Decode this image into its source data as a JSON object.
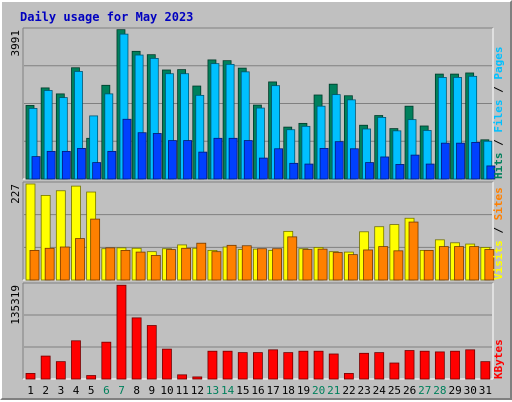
{
  "chart_data": {
    "type": "bar",
    "title": "Daily usage for May 2023",
    "days": [
      "1",
      "2",
      "3",
      "4",
      "5",
      "6",
      "7",
      "8",
      "9",
      "10",
      "11",
      "12",
      "13",
      "14",
      "15",
      "16",
      "17",
      "18",
      "19",
      "20",
      "21",
      "22",
      "23",
      "24",
      "25",
      "26",
      "27",
      "28",
      "29",
      "30",
      "31"
    ],
    "weekend_days": [
      6,
      7,
      13,
      14,
      20,
      21,
      27,
      28
    ],
    "colors": {
      "hits": "#00805c",
      "files": "#00c0ff",
      "pages": "#0040ff",
      "visits": "#ffff00",
      "sites": "#ff8000",
      "kbytes": "#ff0000",
      "weekday_label": "#000000",
      "weekend_label": "#00805c",
      "title": "#0000c0",
      "background": "#c0c0c0",
      "plot_area": "#c0c0c0",
      "grid": "#808080"
    },
    "panels": [
      {
        "id": "hits_files_pages",
        "ymax_label": "3991",
        "ymax": 3991,
        "legend": [
          {
            "text": "Hits",
            "color": "#00805c"
          },
          {
            "text": "/",
            "color": "#000000"
          },
          {
            "text": "Files",
            "color": "#00c0ff"
          },
          {
            "text": "/",
            "color": "#000000"
          },
          {
            "text": "Pages",
            "color": "#00c0ff"
          }
        ],
        "series": [
          {
            "name": "Hits",
            "color": "#00805c",
            "values": [
              1970,
              2440,
              2280,
              2980,
              1090,
              2510,
              4000,
              3420,
              3330,
              2920,
              2930,
              2490,
              3190,
              3170,
              2970,
              1980,
              2600,
              1390,
              1490,
              2250,
              2540,
              2230,
              1440,
              1700,
              1350,
              1950,
              1420,
              2810,
              2810,
              2840,
              1050
            ]
          },
          {
            "name": "Files",
            "color": "#00c0ff",
            "values": [
              1890,
              2370,
              2180,
              2880,
              1690,
              2280,
              3880,
              3320,
              3230,
              2820,
              2820,
              2240,
              3090,
              3070,
              2870,
              1900,
              2500,
              1320,
              1410,
              1950,
              2260,
              2120,
              1340,
              1650,
              1290,
              1590,
              1300,
              2720,
              2720,
              2750,
              1010
            ]
          },
          {
            "name": "Pages",
            "color": "#0040ff",
            "values": [
              600,
              740,
              740,
              820,
              440,
              740,
              1600,
              1240,
              1220,
              1030,
              1030,
              720,
              1090,
              1090,
              1030,
              560,
              810,
              420,
              400,
              820,
              1000,
              810,
              440,
              590,
              390,
              640,
              400,
              960,
              960,
              980,
              350
            ]
          }
        ]
      },
      {
        "id": "visits_sites",
        "ymax_label": "227",
        "ymax": 227,
        "legend": [
          {
            "text": "Visits",
            "color": "#ffff00"
          },
          {
            "text": "/",
            "color": "#000000"
          },
          {
            "text": "Sites",
            "color": "#ff8000"
          }
        ],
        "series": [
          {
            "name": "Visits",
            "color": "#ffff00",
            "values": [
              227,
              200,
              211,
              222,
              208,
              74,
              76,
              75,
              67,
              74,
              83,
              75,
              70,
              78,
              72,
              73,
              70,
              115,
              74,
              77,
              67,
              66,
              114,
              126,
              131,
              146,
              70,
              95,
              88,
              85,
              77
            ]
          },
          {
            "name": "Sites",
            "color": "#ff8000",
            "values": [
              70,
              75,
              78,
              98,
              144,
              76,
              70,
              66,
              58,
              72,
              75,
              87,
              67,
              82,
              81,
              74,
              74,
              102,
              72,
              73,
              65,
              60,
              71,
              79,
              69,
              137,
              70,
              79,
              79,
              79,
              72
            ]
          }
        ]
      },
      {
        "id": "kbytes",
        "ymax_label": "135319",
        "ymax": 135319,
        "legend": [
          {
            "text": "KBytes",
            "color": "#ff0000"
          }
        ],
        "series": [
          {
            "name": "KBytes",
            "color": "#ff0000",
            "values": [
              8000,
              33000,
              25000,
              55000,
              5000,
              53000,
              135000,
              88000,
              77000,
              43000,
              6000,
              3000,
              40000,
              40000,
              38000,
              38000,
              42000,
              38000,
              40000,
              40000,
              36000,
              8000,
              37000,
              38000,
              23000,
              41000,
              40000,
              39000,
              40000,
              42000,
              25000
            ]
          }
        ]
      }
    ]
  }
}
